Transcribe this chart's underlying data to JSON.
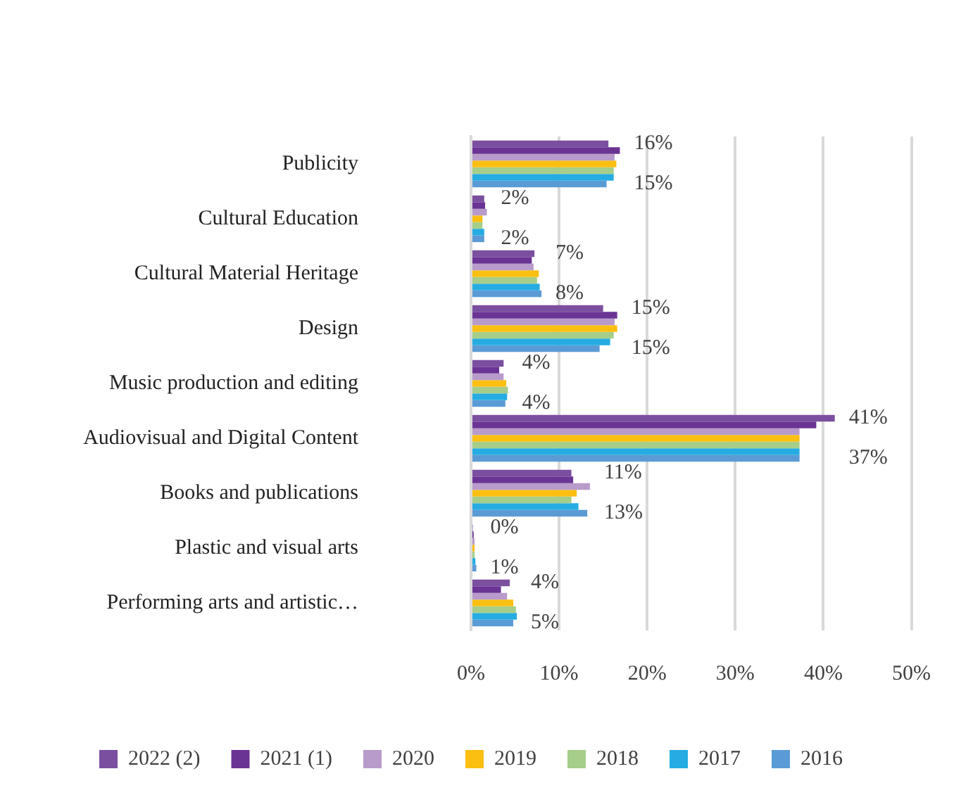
{
  "chart_data": {
    "type": "bar",
    "orientation": "horizontal",
    "categories": [
      "Publicity",
      "Cultural Education",
      "Cultural Material Heritage",
      "Design",
      "Music production and editing",
      "Audiovisual and Digital Content",
      "Books and publications",
      "Plastic and visual arts",
      "Performing arts and artistic…"
    ],
    "series": [
      {
        "name": "2022 (2)",
        "color": "#7b4fa0",
        "values": [
          15.6,
          1.5,
          7.2,
          15.0,
          3.7,
          41.3,
          11.4,
          0.2,
          4.4
        ],
        "value_labels": [
          "16%",
          "2%",
          "7%",
          "15%",
          "4%",
          "41%",
          "11%",
          "0%",
          "4%"
        ]
      },
      {
        "name": "2021 (1)",
        "color": "#6a3494",
        "values": [
          16.9,
          1.6,
          6.9,
          16.6,
          3.2,
          39.2,
          11.6,
          0.3,
          3.4
        ]
      },
      {
        "name": "2020",
        "color": "#b89bcb",
        "values": [
          16.3,
          1.8,
          7.1,
          16.3,
          3.7,
          37.3,
          13.5,
          0.4,
          4.1
        ]
      },
      {
        "name": "2019",
        "color": "#fbbf12",
        "values": [
          16.5,
          1.3,
          7.7,
          16.6,
          4.0,
          37.3,
          12.0,
          0.4,
          4.8
        ]
      },
      {
        "name": "2018",
        "color": "#a6ce8a",
        "values": [
          16.2,
          1.3,
          7.5,
          16.2,
          4.2,
          37.3,
          11.4,
          0.4,
          5.1
        ]
      },
      {
        "name": "2017",
        "color": "#26ace2",
        "values": [
          16.2,
          1.5,
          7.8,
          15.8,
          4.1,
          37.3,
          12.2,
          0.5,
          5.2
        ]
      },
      {
        "name": "2016",
        "color": "#5b9bd5",
        "values": [
          15.4,
          1.5,
          8.0,
          14.6,
          3.9,
          37.3,
          13.2,
          0.6,
          4.8
        ],
        "value_labels": [
          "15%",
          "2%",
          "8%",
          "15%",
          "4%",
          "37%",
          "13%",
          "1%",
          "5%"
        ]
      }
    ],
    "xlim": [
      0,
      50
    ],
    "xticks": [
      {
        "value": 0,
        "label": "0%"
      },
      {
        "value": 10,
        "label": "10%"
      },
      {
        "value": 20,
        "label": "20%"
      },
      {
        "value": 30,
        "label": "30%"
      },
      {
        "value": 40,
        "label": "40%"
      },
      {
        "value": 50,
        "label": "50%"
      }
    ],
    "grid": "x",
    "legend": "bottom"
  }
}
